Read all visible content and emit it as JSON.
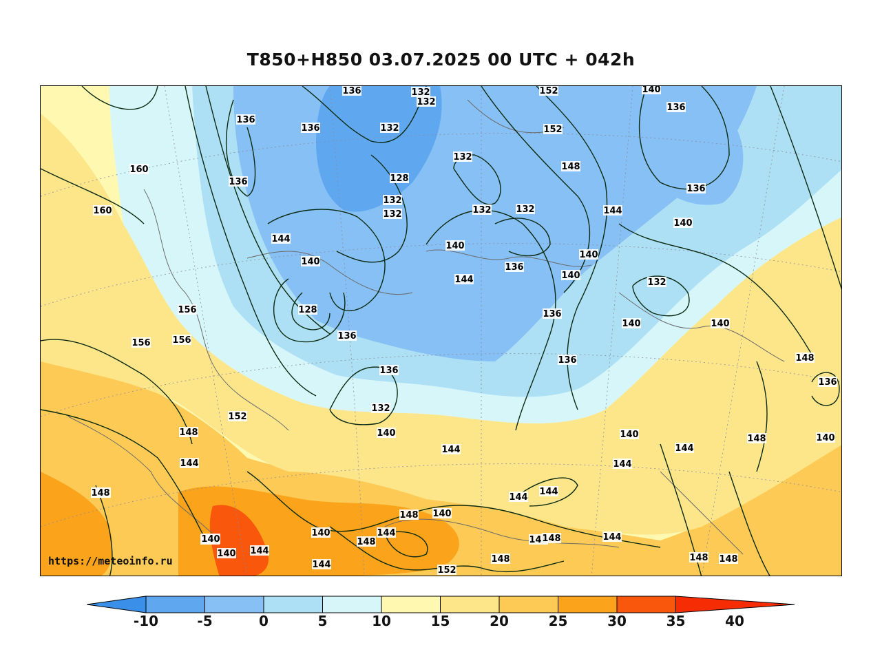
{
  "title": "T850+H850 03.07.2025 00 UTC + 042h",
  "credit": "https://meteoinfo.ru",
  "legend": {
    "ticks": [
      "-10",
      "-5",
      "0",
      "5",
      "10",
      "15",
      "20",
      "25",
      "30",
      "35",
      "40"
    ],
    "colors": [
      "#3a8fe8",
      "#5fa8f0",
      "#86c0f5",
      "#aee0f5",
      "#d7f6fa",
      "#fff8b0",
      "#fde68a",
      "#fdcb55",
      "#fba31a",
      "#f9570b",
      "#f62d04"
    ]
  },
  "contour_labels": [
    "136",
    "132",
    "132",
    "152",
    "140",
    "136",
    "132",
    "136",
    "136",
    "160",
    "128",
    "132",
    "136",
    "136",
    "152",
    "148",
    "160",
    "132",
    "132",
    "132",
    "144",
    "144",
    "140",
    "132",
    "140",
    "144",
    "140",
    "140",
    "136",
    "140",
    "136",
    "140",
    "132",
    "128",
    "156",
    "136",
    "136",
    "156",
    "156",
    "140",
    "136",
    "148",
    "152",
    "132",
    "144",
    "136",
    "148",
    "140",
    "144",
    "144",
    "144",
    "144",
    "148",
    "144",
    "144",
    "140",
    "148",
    "144",
    "140",
    "148",
    "148",
    "148",
    "148",
    "148",
    "144",
    "140",
    "140",
    "144",
    "140",
    "148",
    "152",
    "148",
    "148",
    "148",
    "140"
  ]
}
